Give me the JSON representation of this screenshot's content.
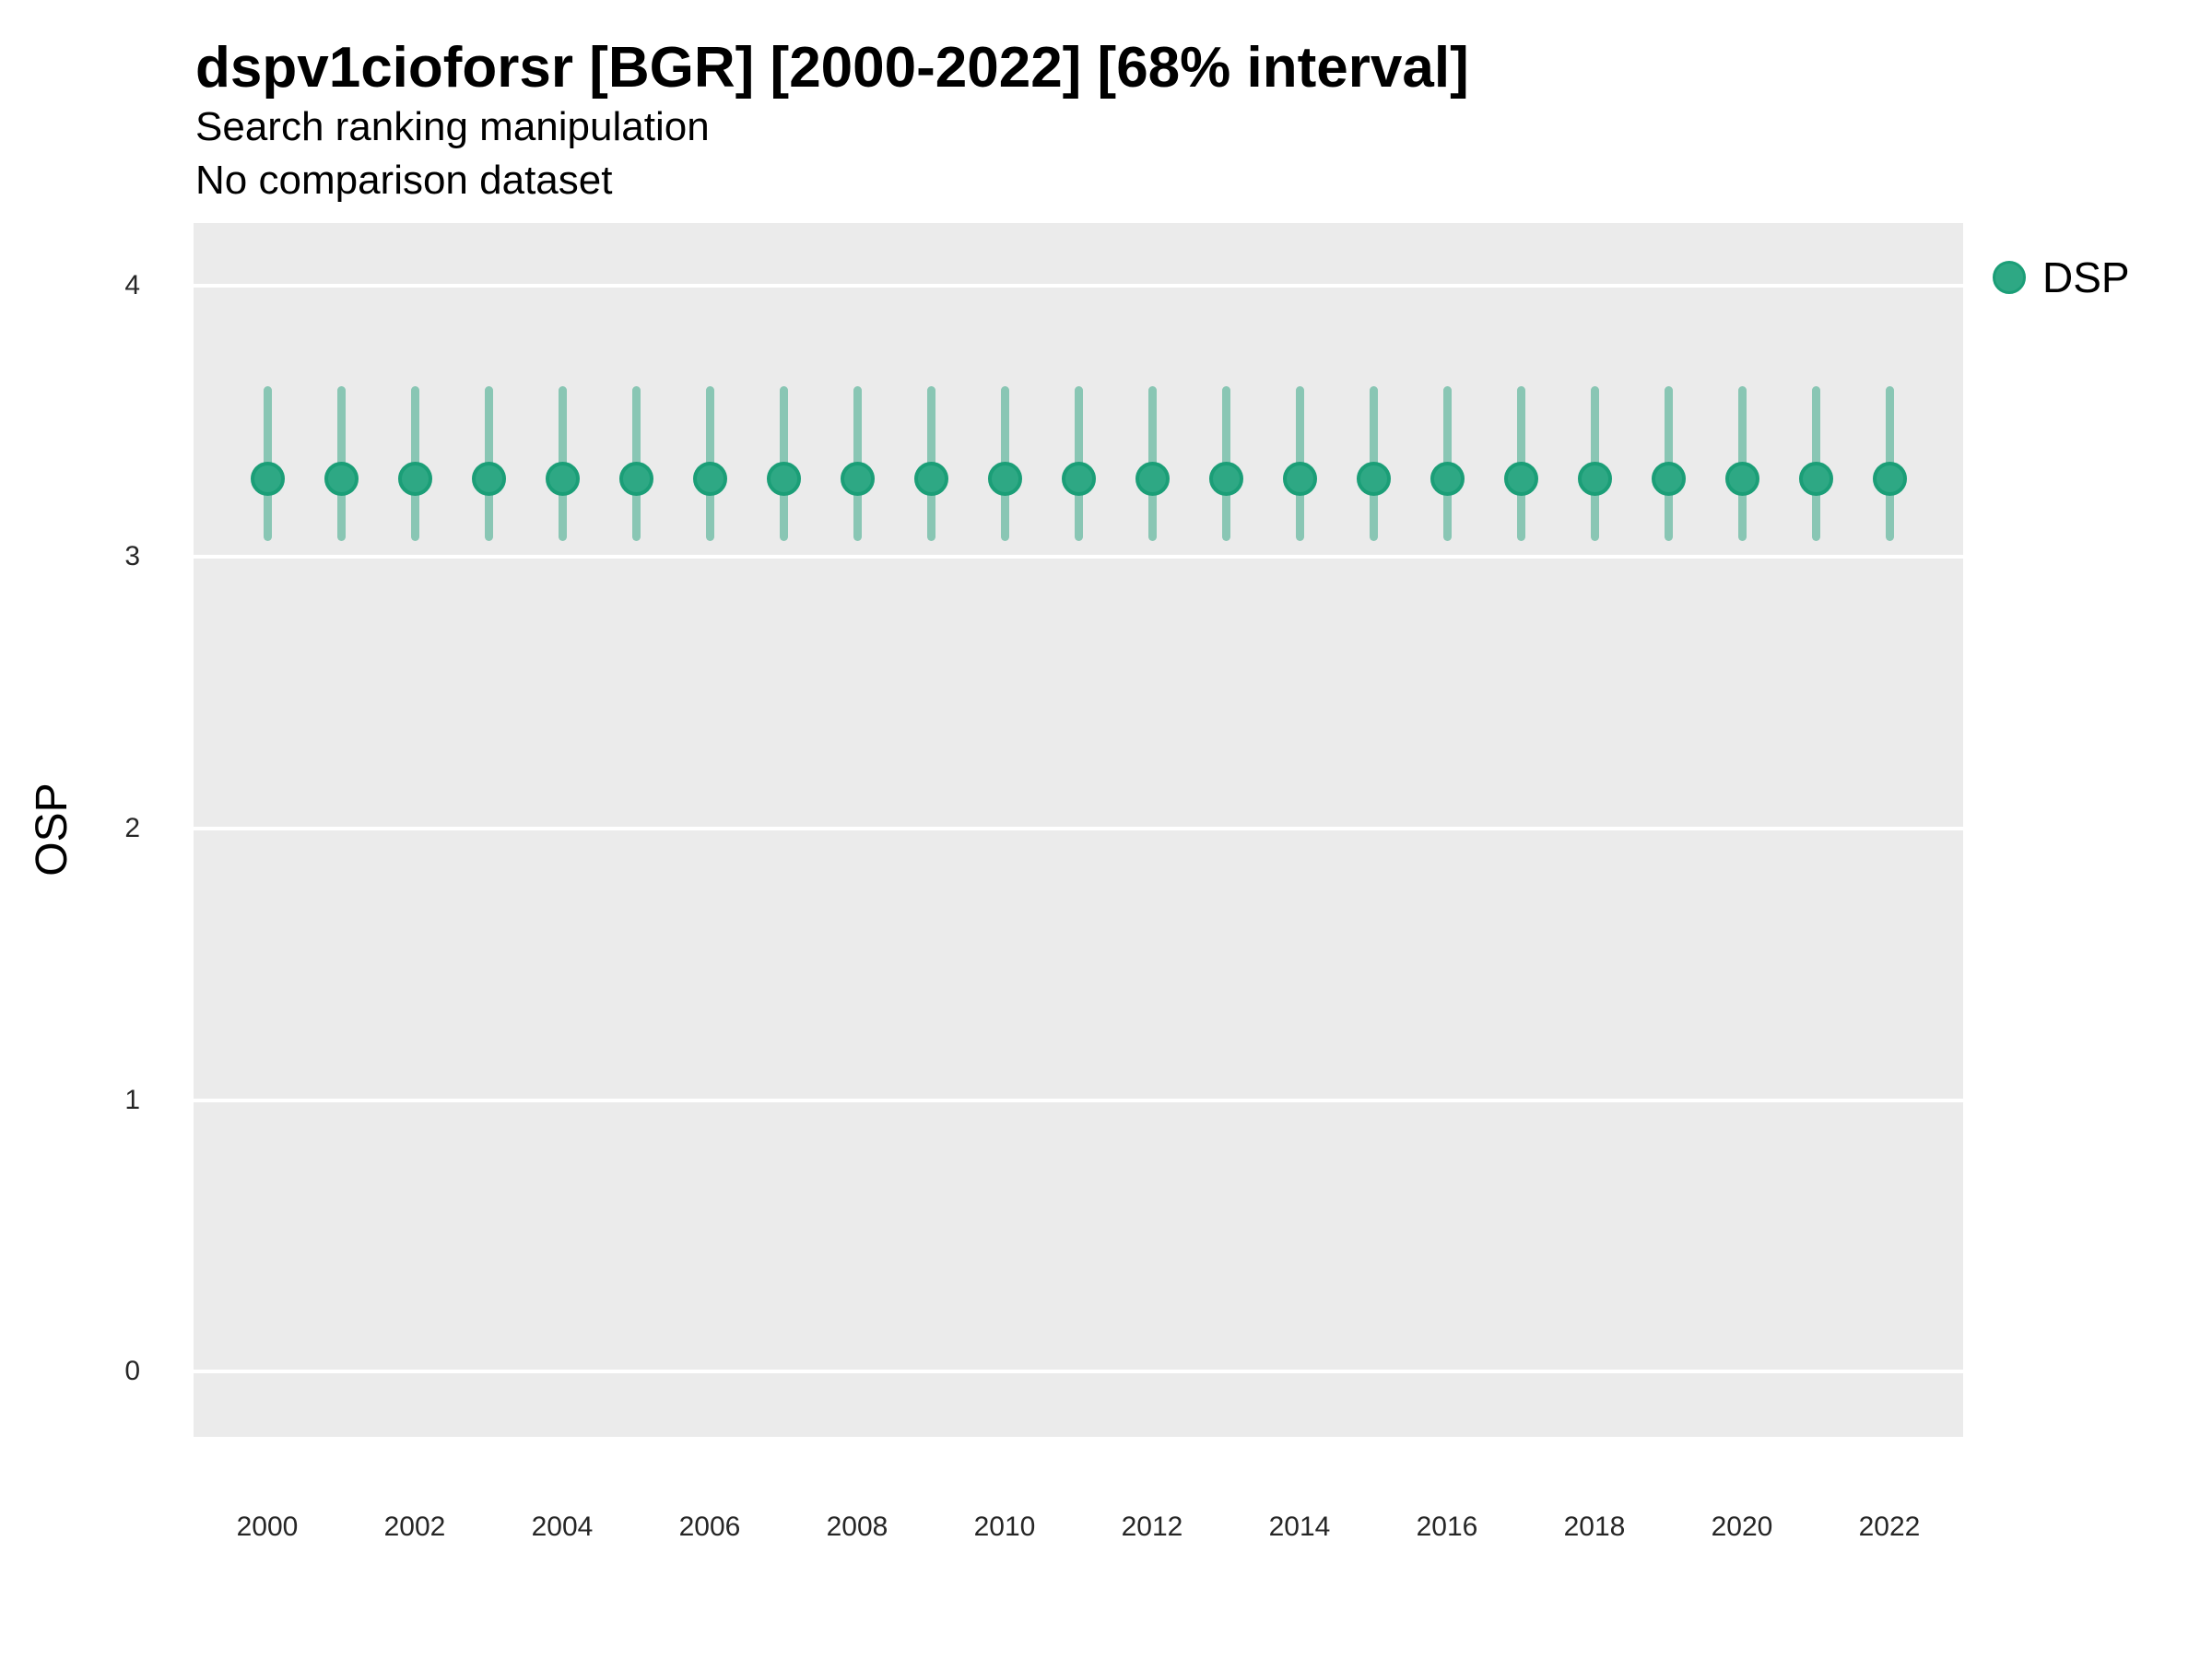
{
  "header": {
    "title": "dspv1cioforsr [BGR] [2000-2022] [68% interval]",
    "subtitle_line1": "Search ranking manipulation",
    "subtitle_line2": "No comparison dataset"
  },
  "legend": {
    "position": "right",
    "items": [
      {
        "label": "DSP",
        "color": "#1b9e77"
      }
    ]
  },
  "colors": {
    "point_stroke": "#1b9e77",
    "point_fill": "#2ea884",
    "interval_bar": "rgba(27,158,119,0.47)",
    "panel_background": "#ebebeb",
    "gridline": "#ffffff",
    "title_text": "#000000",
    "axis_text": "#262626"
  },
  "chart_data": {
    "type": "scatter",
    "title": "dspv1cioforsr [BGR] [2000-2022] [68% interval]",
    "subtitle": [
      "Search ranking manipulation",
      "No comparison dataset"
    ],
    "xlabel": "",
    "ylabel": "OSP",
    "interval_level": "68%",
    "x": [
      2000,
      2001,
      2002,
      2003,
      2004,
      2005,
      2006,
      2007,
      2008,
      2009,
      2010,
      2011,
      2012,
      2013,
      2014,
      2015,
      2016,
      2017,
      2018,
      2019,
      2020,
      2021,
      2022
    ],
    "series": [
      {
        "name": "DSP",
        "values": [
          3.29,
          3.29,
          3.29,
          3.29,
          3.29,
          3.29,
          3.29,
          3.29,
          3.29,
          3.29,
          3.29,
          3.29,
          3.29,
          3.29,
          3.29,
          3.29,
          3.29,
          3.29,
          3.29,
          3.29,
          3.29,
          3.29,
          3.29
        ],
        "interval_low": [
          3.06,
          3.06,
          3.06,
          3.06,
          3.06,
          3.06,
          3.06,
          3.06,
          3.06,
          3.06,
          3.06,
          3.06,
          3.06,
          3.06,
          3.06,
          3.06,
          3.06,
          3.06,
          3.06,
          3.06,
          3.06,
          3.06,
          3.06
        ],
        "interval_high": [
          3.63,
          3.63,
          3.63,
          3.63,
          3.63,
          3.63,
          3.63,
          3.63,
          3.63,
          3.63,
          3.63,
          3.63,
          3.63,
          3.63,
          3.63,
          3.63,
          3.63,
          3.63,
          3.63,
          3.63,
          3.63,
          3.63,
          3.63
        ]
      }
    ],
    "xticks": [
      2000,
      2002,
      2004,
      2006,
      2008,
      2010,
      2012,
      2014,
      2016,
      2018,
      2020,
      2022
    ],
    "yticks": [
      0,
      1,
      2,
      3,
      4
    ],
    "xlim": [
      1999,
      2023
    ],
    "ylim": [
      -0.24,
      4.23
    ],
    "grid": "horizontal major gridlines only",
    "legend_position": "right-top"
  }
}
